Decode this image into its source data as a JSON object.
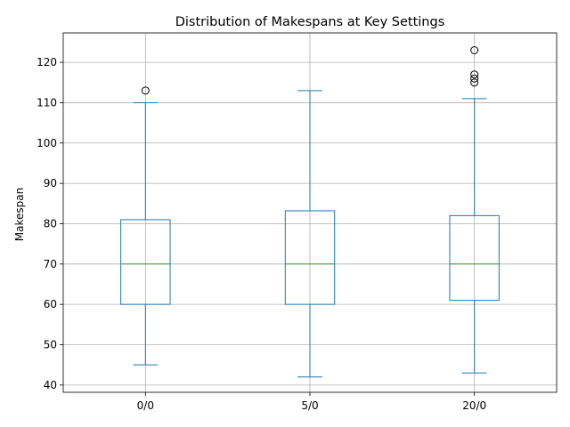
{
  "chart_data": {
    "type": "boxplot",
    "title": "Distribution of Makespans at Key Settings",
    "xlabel": "",
    "ylabel": "Makespan",
    "categories": [
      "0/0",
      "5/0",
      "20/0"
    ],
    "boxes": [
      {
        "category": "0/0",
        "whisker_low": 45,
        "q1": 60,
        "median": 70,
        "q3": 81,
        "whisker_high": 110,
        "outliers": [
          113
        ]
      },
      {
        "category": "5/0",
        "whisker_low": 42,
        "q1": 60,
        "median": 70,
        "q3": 83.2,
        "whisker_high": 113,
        "outliers": []
      },
      {
        "category": "20/0",
        "whisker_low": 43,
        "q1": 61,
        "median": 70,
        "q3": 82,
        "whisker_high": 111,
        "outliers": [
          115,
          116,
          117,
          123
        ]
      }
    ],
    "ylim": [
      38.2,
      127.3
    ],
    "yticks": [
      40,
      50,
      60,
      70,
      80,
      90,
      100,
      110,
      120
    ],
    "grid": true,
    "colors": {
      "box": "#1f77b4",
      "median": "#2ca02c",
      "grid": "#b0b0b0",
      "outlier": "#000000",
      "axis": "#000000"
    }
  }
}
